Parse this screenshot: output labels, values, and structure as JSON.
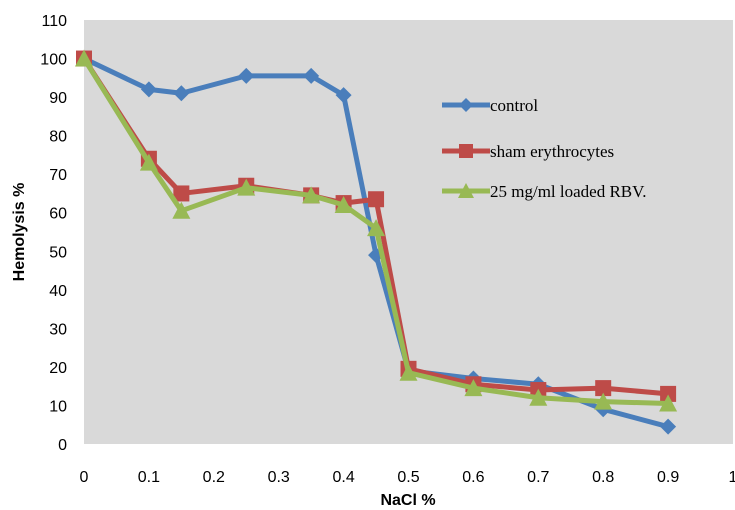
{
  "chart_data": {
    "type": "line",
    "xlabel": "NaCl %",
    "ylabel": "Hemolysis %",
    "xlim": [
      0,
      1
    ],
    "ylim": [
      0,
      110
    ],
    "x_ticks": [
      "0",
      "0.1",
      "0.2",
      "0.3",
      "0.4",
      "0.5",
      "0.6",
      "0.7",
      "0.8",
      "0.9",
      "1"
    ],
    "y_ticks": [
      "0",
      "10",
      "20",
      "30",
      "40",
      "50",
      "60",
      "70",
      "80",
      "90",
      "100",
      "110"
    ],
    "grid": false,
    "plot_background": "#d9d9d9",
    "legend_position": "right-middle",
    "series": [
      {
        "name": "control",
        "color": "#4a7ebb",
        "marker": "diamond",
        "x": [
          0,
          0.1,
          0.15,
          0.25,
          0.35,
          0.4,
          0.45,
          0.5,
          0.6,
          0.7,
          0.8,
          0.9
        ],
        "y": [
          100,
          92,
          91,
          95.5,
          95.5,
          90.5,
          49,
          19,
          17,
          15.5,
          9,
          4.5
        ]
      },
      {
        "name": "sham erythrocytes",
        "color": "#be4b48",
        "marker": "square",
        "x": [
          0,
          0.1,
          0.15,
          0.25,
          0.35,
          0.4,
          0.45,
          0.5,
          0.6,
          0.7,
          0.8,
          0.9
        ],
        "y": [
          100,
          74,
          65,
          67,
          64.5,
          62.5,
          63.5,
          19.5,
          15.5,
          14,
          14.5,
          13
        ]
      },
      {
        "name": "25 mg/ml loaded RBV.",
        "color": "#98b954",
        "marker": "triangle",
        "x": [
          0,
          0.1,
          0.15,
          0.25,
          0.35,
          0.4,
          0.45,
          0.5,
          0.6,
          0.7,
          0.8,
          0.9
        ],
        "y": [
          100,
          73,
          60.5,
          66.5,
          64.5,
          62,
          56,
          18.5,
          14.5,
          12,
          11,
          10.5
        ]
      }
    ]
  }
}
